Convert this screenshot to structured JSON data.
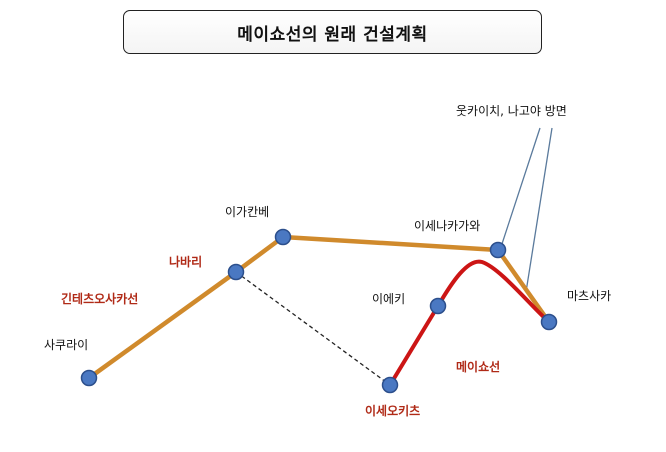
{
  "title": "메이쇼선의 원래 건설계획",
  "colors": {
    "kintetsu_line": "#d08a2c",
    "meisho_line": "#cc1515",
    "station_fill": "#4a78c2",
    "station_stroke": "#2c4f8c",
    "pointer_line": "#5a7a9c",
    "dashed_line": "#222222"
  },
  "labels": {
    "sakurai": "사쿠라이",
    "nabari": "나바리",
    "kintetsu_osaka_line": "긴테츠오사카선",
    "igakanbe": "이가칸베",
    "ise_nakagawa": "이세나카가와",
    "utsukaichi_nagoya": "웃카이치, 나고야 방면",
    "matsusaka": "마츠사카",
    "ieki": "이에키",
    "meisho_line": "메이쇼선",
    "ise_okitsu": "이세오키츠"
  }
}
